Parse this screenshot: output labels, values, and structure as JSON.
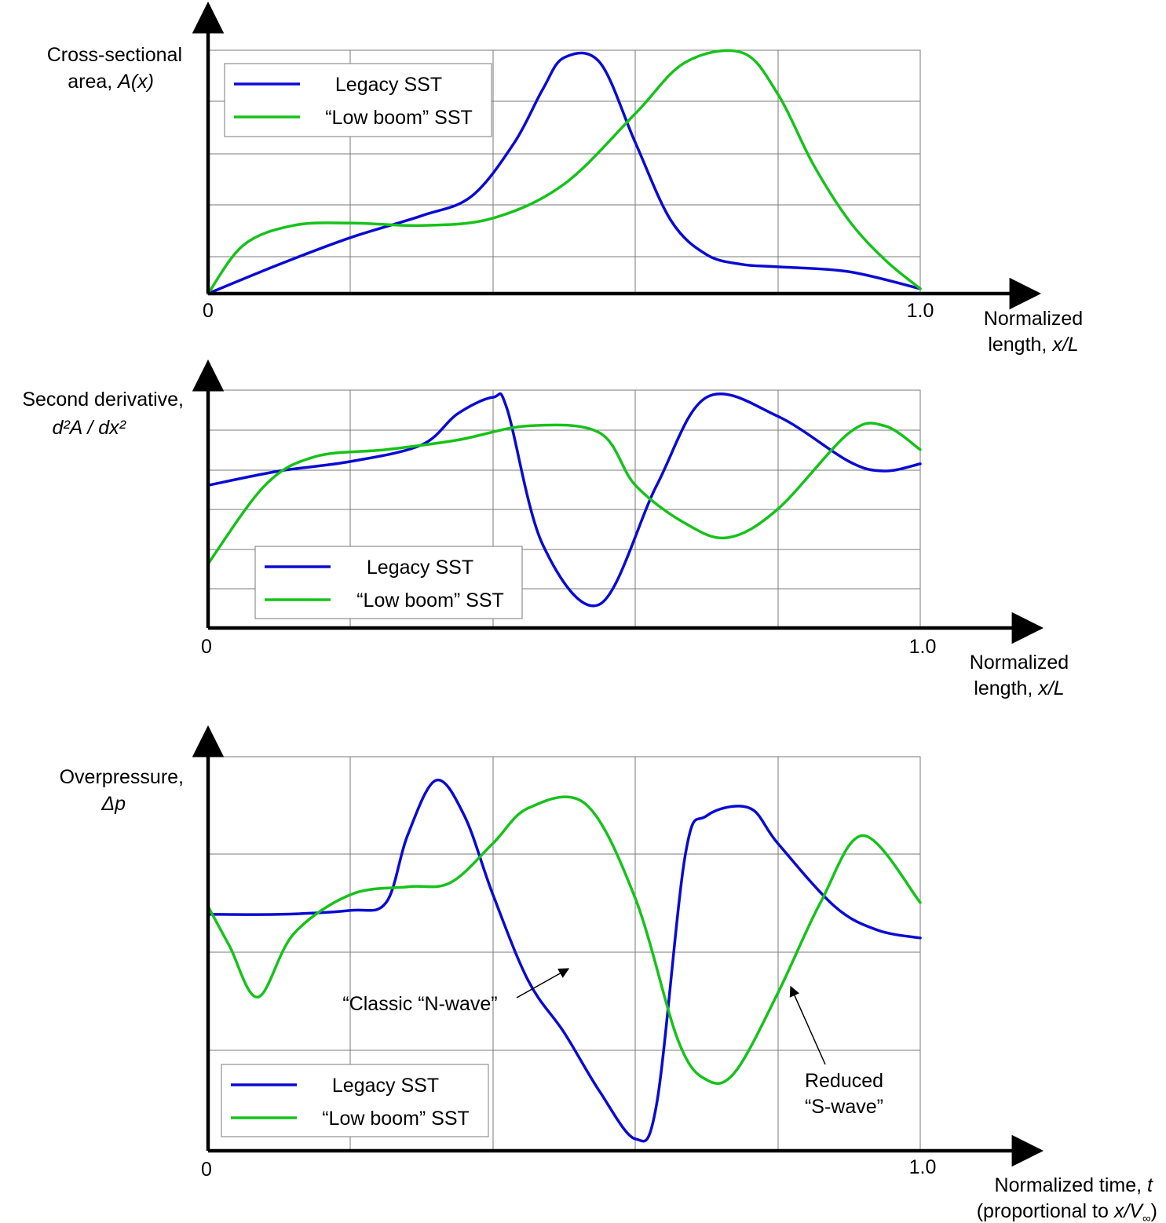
{
  "colors": {
    "legacy": "#0a0ad2",
    "lowboom": "#16c21a",
    "axis": "#000000",
    "grid": "#7a7a7a"
  },
  "chart_data": [
    {
      "type": "line",
      "ylabel_line1": "Cross-sectional",
      "ylabel_line2_prefix": "area, ",
      "ylabel_line2_italic": "A(x)",
      "xlabel_line1": "Normalized",
      "xlabel_line2_prefix": "length, ",
      "xlabel_line2_italic": "x/L",
      "x_tick_start": "0",
      "x_tick_end": "1.0",
      "xlim": [
        0,
        1
      ],
      "ylim": [
        0,
        1
      ],
      "grid": true,
      "legend_position": "top-left",
      "legend": [
        "Legacy SST",
        "“Low boom” SST"
      ],
      "series": [
        {
          "name": "Legacy SST",
          "color": "legacy",
          "x": [
            0,
            0.1,
            0.2,
            0.3,
            0.37,
            0.43,
            0.47,
            0.5,
            0.55,
            0.6,
            0.65,
            0.7,
            0.75,
            0.8,
            0.9,
            1.0
          ],
          "y": [
            0,
            0.12,
            0.23,
            0.32,
            0.4,
            0.62,
            0.84,
            0.97,
            0.95,
            0.62,
            0.3,
            0.16,
            0.12,
            0.11,
            0.09,
            0.02
          ]
        },
        {
          "name": "“Low boom” SST",
          "color": "lowboom",
          "x": [
            0,
            0.05,
            0.12,
            0.2,
            0.3,
            0.4,
            0.5,
            0.6,
            0.67,
            0.75,
            0.8,
            0.85,
            0.9,
            0.95,
            1.0
          ],
          "y": [
            0,
            0.2,
            0.28,
            0.29,
            0.28,
            0.31,
            0.45,
            0.74,
            0.95,
            0.99,
            0.82,
            0.53,
            0.3,
            0.14,
            0.02
          ]
        }
      ]
    },
    {
      "type": "line",
      "ylabel_line1": "Second derivative,",
      "ylabel_line2_italic": "d²A / dx²",
      "xlabel_line1": "Normalized",
      "xlabel_line2_prefix": "length, ",
      "xlabel_line2_italic": "x/L",
      "x_tick_start": "0",
      "x_tick_end": "1.0",
      "xlim": [
        0,
        1
      ],
      "ylim": [
        0,
        1
      ],
      "grid": true,
      "legend_position": "bottom-left",
      "legend": [
        "Legacy SST",
        "“Low boom” SST"
      ],
      "series": [
        {
          "name": "Legacy SST",
          "color": "legacy",
          "x": [
            0,
            0.1,
            0.2,
            0.3,
            0.35,
            0.4,
            0.42,
            0.47,
            0.55,
            0.63,
            0.7,
            0.8,
            0.9,
            0.95,
            1.0
          ],
          "y": [
            0.6,
            0.66,
            0.7,
            0.77,
            0.9,
            0.97,
            0.92,
            0.35,
            0.1,
            0.6,
            0.97,
            0.89,
            0.7,
            0.66,
            0.69
          ]
        },
        {
          "name": "“Low boom” SST",
          "color": "lowboom",
          "x": [
            0,
            0.08,
            0.15,
            0.25,
            0.35,
            0.45,
            0.55,
            0.6,
            0.67,
            0.73,
            0.8,
            0.9,
            0.95,
            1.0
          ],
          "y": [
            0.27,
            0.6,
            0.72,
            0.75,
            0.79,
            0.85,
            0.82,
            0.6,
            0.44,
            0.38,
            0.5,
            0.82,
            0.85,
            0.75
          ]
        }
      ]
    },
    {
      "type": "line",
      "ylabel_line1": "Overpressure,",
      "ylabel_line2_italic": "Δp",
      "xlabel_line1_prefix": "Normalized time, ",
      "xlabel_line1_italic": "t",
      "xlabel_line2_prefix": "(proportional to ",
      "xlabel_line2_italic": "x/V",
      "xlabel_line2_sub": "∞",
      "xlabel_line2_suffix": ")",
      "x_tick_start": "0",
      "x_tick_end": "1.0",
      "xlim": [
        0,
        1
      ],
      "ylim": [
        0,
        1
      ],
      "grid": true,
      "legend_position": "bottom-left",
      "legend": [
        "Legacy SST",
        "“Low boom” SST"
      ],
      "annotations": {
        "nwave": "“Classic “N-wave”",
        "swave_line1": "Reduced",
        "swave_line2": "“S-wave”"
      },
      "series": [
        {
          "name": "Legacy SST",
          "color": "legacy",
          "x": [
            0,
            0.1,
            0.2,
            0.25,
            0.28,
            0.32,
            0.36,
            0.4,
            0.45,
            0.5,
            0.55,
            0.6,
            0.63,
            0.67,
            0.7,
            0.76,
            0.8,
            0.88,
            0.94,
            1.0
          ],
          "y": [
            0.6,
            0.6,
            0.61,
            0.63,
            0.8,
            0.94,
            0.85,
            0.65,
            0.43,
            0.3,
            0.15,
            0.03,
            0.12,
            0.75,
            0.85,
            0.87,
            0.78,
            0.62,
            0.56,
            0.54
          ]
        },
        {
          "name": "“Low boom” SST",
          "color": "lowboom",
          "x": [
            0,
            0.03,
            0.07,
            0.12,
            0.2,
            0.28,
            0.34,
            0.4,
            0.45,
            0.53,
            0.6,
            0.66,
            0.7,
            0.74,
            0.8,
            0.86,
            0.92,
            1.0
          ],
          "y": [
            0.62,
            0.52,
            0.39,
            0.55,
            0.65,
            0.67,
            0.68,
            0.78,
            0.87,
            0.88,
            0.64,
            0.28,
            0.18,
            0.2,
            0.4,
            0.63,
            0.8,
            0.63
          ]
        }
      ]
    }
  ]
}
